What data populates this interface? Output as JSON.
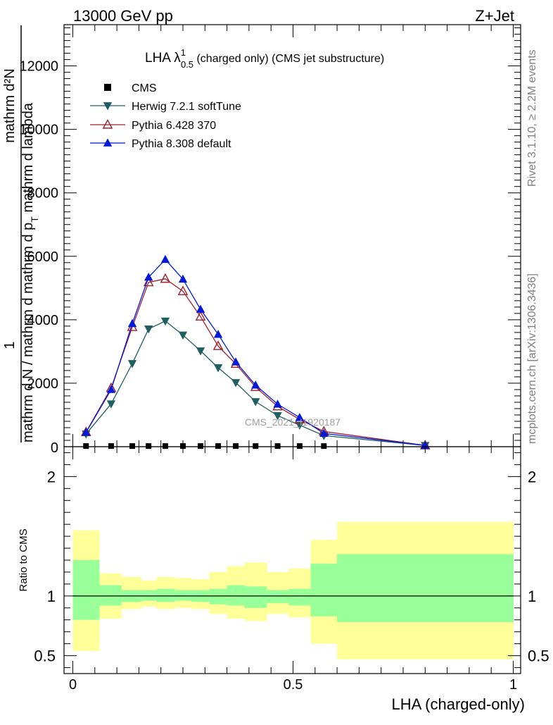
{
  "header": {
    "left": "13000 GeV pp",
    "right": "Z+Jet"
  },
  "side_labels": {
    "rivet": "Rivet 3.1.10, ≥ 2.2M events",
    "mcplots": "mcplots.cern.ch [arXiv:1306.3436]"
  },
  "watermark": "CMS_2021_I1920187",
  "colors": {
    "herwig": "#1f5f63",
    "pythia6": "#a01f2a",
    "pythia8": "#0018d8",
    "cms": "#000000",
    "band_outer": "#ffff99",
    "band_inner": "#99ff99"
  },
  "chart_data": [
    {
      "type": "line",
      "title_main": "LHA λ",
      "title_sup": "1",
      "title_sub": "0.5",
      "title_rest": " (charged only) (CMS jet substructure)",
      "ylabel_top": "1",
      "ylabel_num": "mathrm d²N",
      "ylabel_den": "mathrm d N / mathrm d mathrm d p",
      "ylabel_den_sub": "T",
      "ylabel_den_rest": " mathrm d lambda",
      "xlim": [
        0,
        1
      ],
      "ylim": [
        0,
        13300
      ],
      "yticks": [
        2000,
        4000,
        6000,
        8000,
        10000,
        12000
      ],
      "ytick_labels": [
        "2000",
        "4000",
        "6000",
        "8000",
        "10000",
        "12000"
      ],
      "bottom_tick_label": "0",
      "legend_position": "top-left",
      "x": [
        0.03,
        0.087,
        0.135,
        0.172,
        0.21,
        0.25,
        0.29,
        0.33,
        0.37,
        0.415,
        0.465,
        0.515,
        0.57,
        0.8
      ],
      "series": [
        {
          "name": "CMS",
          "marker": "square",
          "values": [
            20,
            20,
            20,
            20,
            20,
            20,
            20,
            20,
            20,
            20,
            20,
            20,
            20,
            20
          ]
        },
        {
          "name": "Herwig 7.2.1 softTune",
          "marker": "triangle-down",
          "values": [
            400,
            1350,
            2620,
            3710,
            3960,
            3520,
            3020,
            2490,
            2020,
            1420,
            980,
            680,
            350,
            40
          ]
        },
        {
          "name": "Pythia 6.428 370",
          "marker": "triangle-up-open",
          "values": [
            460,
            1850,
            3770,
            5180,
            5290,
            4900,
            4100,
            3170,
            2610,
            1880,
            1270,
            860,
            480,
            40
          ]
        },
        {
          "name": "Pythia 8.308 default",
          "marker": "triangle-up",
          "values": [
            450,
            1800,
            3880,
            5340,
            5900,
            5280,
            4330,
            3540,
            2670,
            1940,
            1340,
            920,
            420,
            40
          ]
        }
      ]
    },
    {
      "type": "area",
      "ylabel": "Ratio to CMS",
      "xlabel": "LHA (charged-only)",
      "xlim": [
        0,
        1
      ],
      "ylim": [
        0.35,
        2.25
      ],
      "xticks": [
        0,
        0.5,
        1
      ],
      "xtick_labels": [
        "0",
        "0.5",
        "1"
      ],
      "yticks": [
        0.5,
        1,
        2
      ],
      "ytick_labels": [
        "0.5",
        "1",
        "2"
      ],
      "reference_line": 1,
      "bins": [
        0,
        0.06,
        0.11,
        0.155,
        0.19,
        0.23,
        0.27,
        0.31,
        0.35,
        0.39,
        0.44,
        0.49,
        0.54,
        0.6,
        1.0
      ],
      "outer_hi": [
        1.55,
        1.19,
        1.16,
        1.13,
        1.16,
        1.15,
        1.14,
        1.2,
        1.25,
        1.28,
        1.2,
        1.23,
        1.47,
        1.62
      ],
      "outer_lo": [
        0.54,
        0.81,
        0.89,
        0.91,
        0.89,
        0.9,
        0.89,
        0.85,
        0.81,
        0.79,
        0.85,
        0.82,
        0.6,
        0.47
      ],
      "inner_hi": [
        1.3,
        1.09,
        1.05,
        1.05,
        1.06,
        1.05,
        1.05,
        1.06,
        1.09,
        1.08,
        1.05,
        1.06,
        1.27,
        1.35
      ],
      "inner_lo": [
        0.8,
        0.92,
        0.95,
        0.96,
        0.95,
        0.96,
        0.95,
        0.93,
        0.92,
        0.9,
        0.94,
        0.92,
        0.83,
        0.78
      ]
    }
  ]
}
